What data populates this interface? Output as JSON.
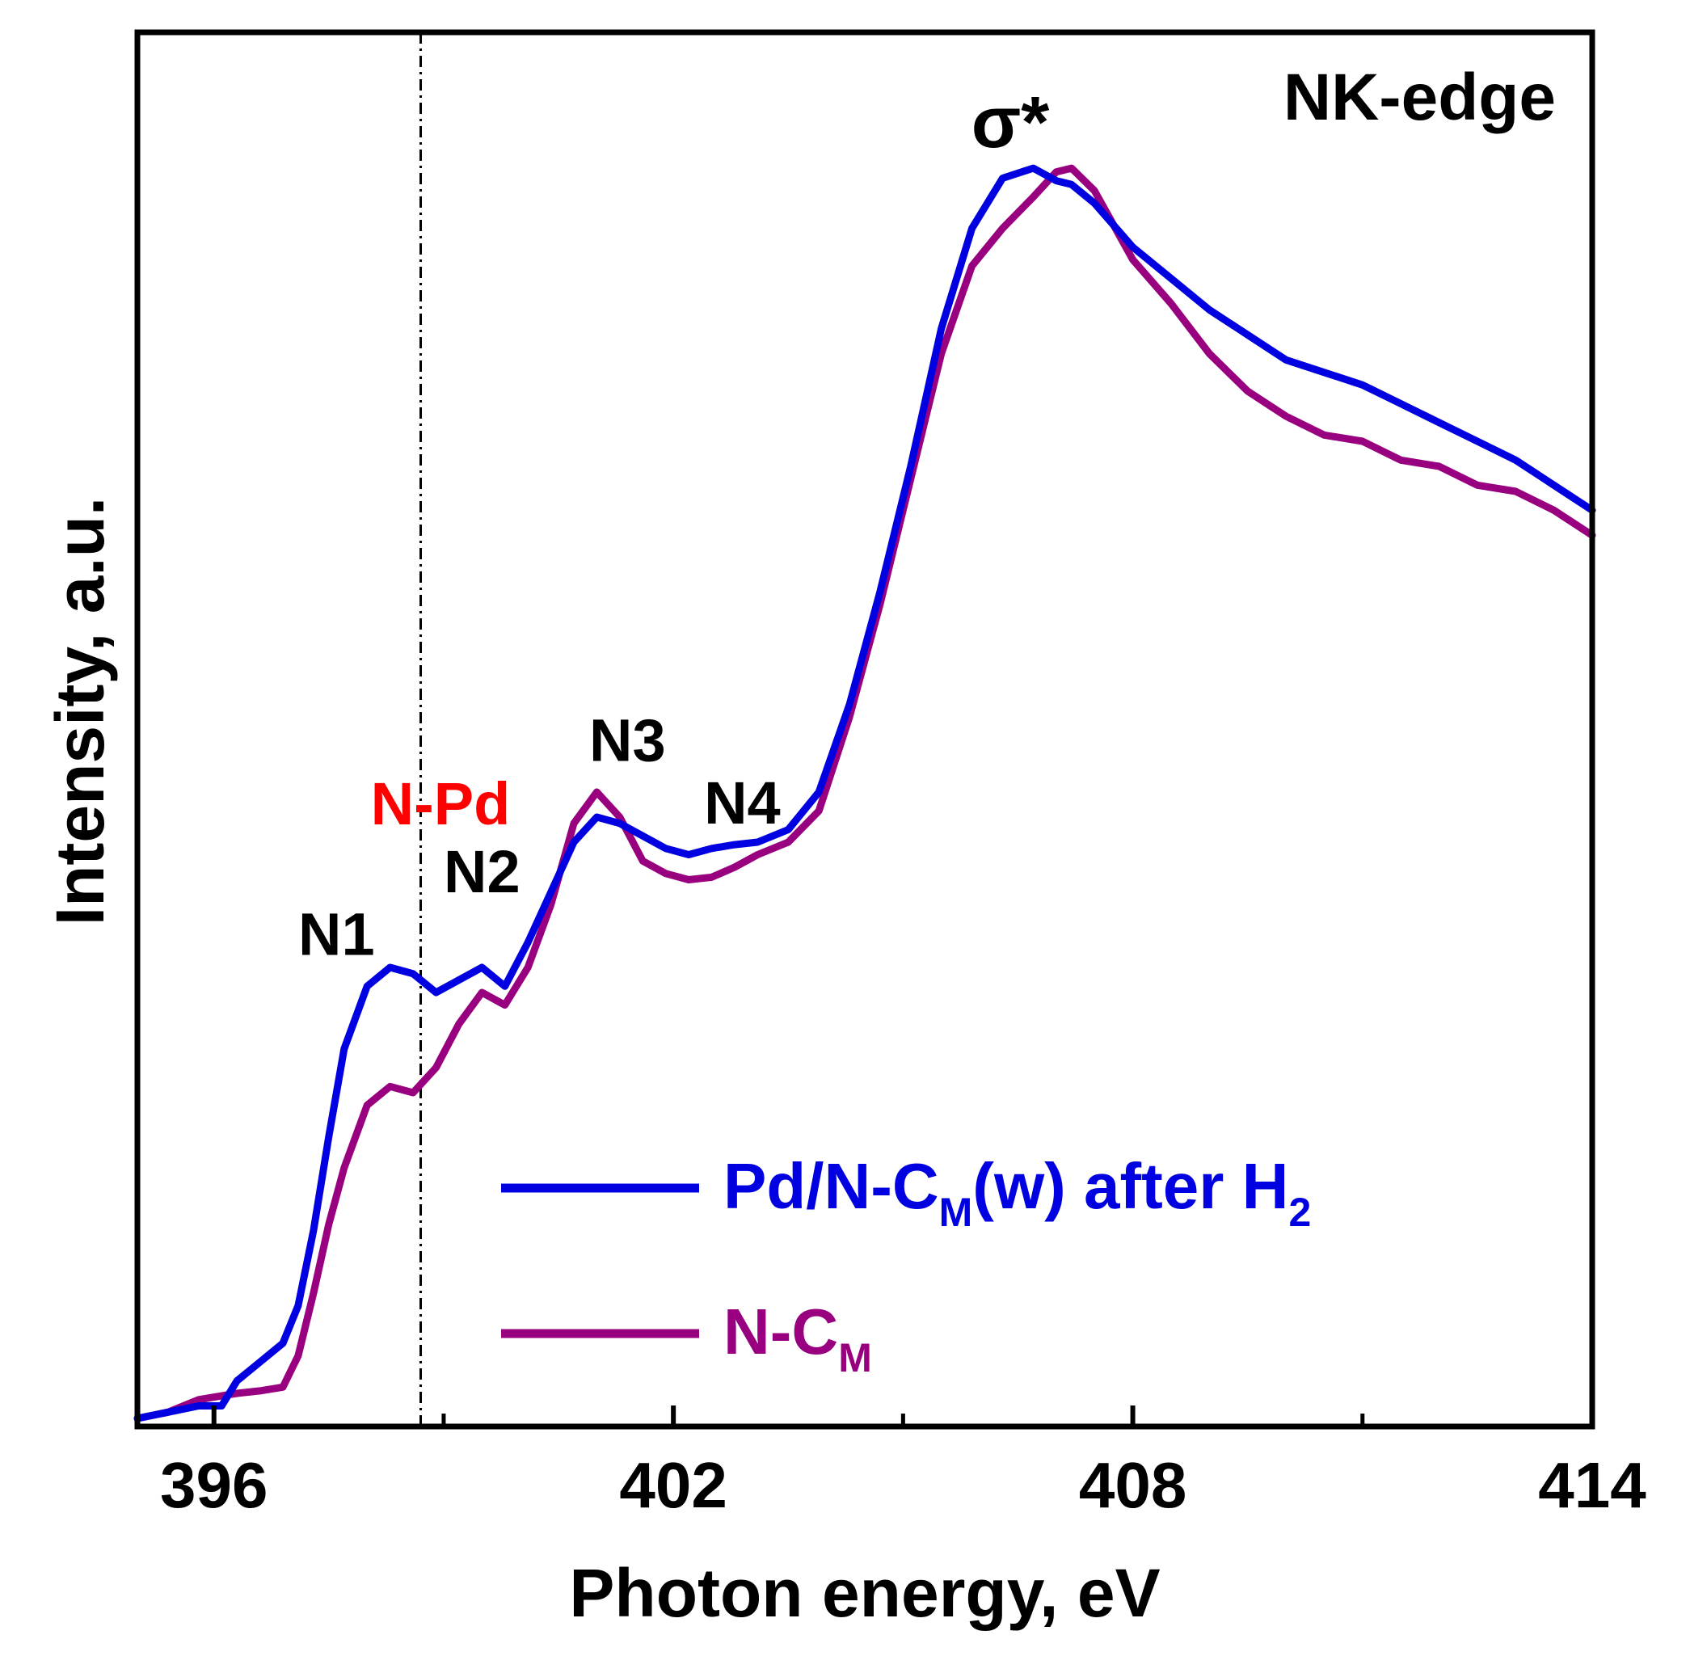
{
  "chart_data": {
    "type": "line",
    "title": "",
    "xlabel": "Photon energy, eV",
    "ylabel": "Intensity, a.u.",
    "xlim": [
      395,
      414
    ],
    "ylim": [
      0,
      1
    ],
    "grid": false,
    "xticks": [
      396,
      402,
      408,
      414
    ],
    "xticks_minor": [
      399,
      405,
      411
    ],
    "edge_label": "NK-edge",
    "reference_line": {
      "x": 398.7,
      "label": "N-Pd",
      "color": "#ff0000",
      "style": "dash-dot"
    },
    "annotations": [
      {
        "id": "n1",
        "text": "N1",
        "x": 397.6,
        "y": 0.37
      },
      {
        "id": "n2",
        "text": "N2",
        "x": 399.5,
        "y": 0.42
      },
      {
        "id": "n3",
        "text": "N3",
        "x": 401.4,
        "y": 0.525
      },
      {
        "id": "n4",
        "text": "N4",
        "x": 402.9,
        "y": 0.475
      },
      {
        "id": "sigma",
        "text": "σ*",
        "x": 406.4,
        "y": 1.015
      }
    ],
    "legend": {
      "position": "lower-right",
      "entries": [
        {
          "series": 0,
          "text": "Pd/N-C",
          "sub": "M",
          "suffix": "(w) after H",
          "sub2": "2"
        },
        {
          "series": 1,
          "text": "N-C",
          "sub": "M",
          "suffix": "",
          "sub2": ""
        }
      ]
    },
    "series": [
      {
        "name": "Pd/N-CM(w) after H2",
        "color": "#0000e0",
        "x": [
          395.0,
          395.4,
          395.8,
          396.1,
          396.3,
          396.6,
          396.9,
          397.1,
          397.3,
          397.5,
          397.7,
          398.0,
          398.3,
          398.6,
          398.9,
          399.2,
          399.5,
          399.8,
          400.1,
          400.4,
          400.7,
          401.0,
          401.3,
          401.6,
          401.9,
          402.2,
          402.5,
          402.8,
          403.1,
          403.5,
          403.9,
          404.3,
          404.7,
          405.1,
          405.5,
          405.9,
          406.3,
          406.7,
          407.0,
          407.2,
          407.5,
          408.0,
          408.5,
          409.0,
          409.5,
          410.0,
          410.5,
          411.0,
          411.5,
          412.0,
          412.5,
          413.0,
          413.5,
          414.0
        ],
        "y": [
          0.0,
          0.005,
          0.01,
          0.01,
          0.03,
          0.045,
          0.06,
          0.09,
          0.15,
          0.225,
          0.295,
          0.345,
          0.36,
          0.355,
          0.34,
          0.35,
          0.36,
          0.345,
          0.38,
          0.42,
          0.46,
          0.48,
          0.475,
          0.465,
          0.455,
          0.45,
          0.455,
          0.458,
          0.46,
          0.47,
          0.5,
          0.57,
          0.66,
          0.76,
          0.87,
          0.95,
          0.99,
          0.998,
          0.988,
          0.985,
          0.97,
          0.935,
          0.91,
          0.885,
          0.865,
          0.845,
          0.835,
          0.825,
          0.81,
          0.795,
          0.78,
          0.765,
          0.745,
          0.725
        ]
      },
      {
        "name": "N-CM",
        "color": "#990080",
        "x": [
          395.0,
          395.4,
          395.8,
          396.1,
          396.3,
          396.6,
          396.9,
          397.1,
          397.3,
          397.5,
          397.7,
          398.0,
          398.3,
          398.6,
          398.9,
          399.2,
          399.5,
          399.8,
          400.1,
          400.4,
          400.7,
          401.0,
          401.3,
          401.6,
          401.9,
          402.2,
          402.5,
          402.8,
          403.1,
          403.5,
          403.9,
          404.3,
          404.7,
          405.1,
          405.5,
          405.9,
          406.3,
          406.7,
          407.0,
          407.2,
          407.5,
          408.0,
          408.5,
          409.0,
          409.5,
          410.0,
          410.5,
          411.0,
          411.5,
          412.0,
          412.5,
          413.0,
          413.5,
          414.0
        ],
        "y": [
          0.0,
          0.005,
          0.015,
          0.018,
          0.02,
          0.022,
          0.025,
          0.05,
          0.1,
          0.155,
          0.2,
          0.25,
          0.265,
          0.26,
          0.28,
          0.315,
          0.34,
          0.33,
          0.36,
          0.41,
          0.475,
          0.5,
          0.48,
          0.445,
          0.435,
          0.43,
          0.432,
          0.44,
          0.45,
          0.46,
          0.485,
          0.56,
          0.65,
          0.75,
          0.85,
          0.92,
          0.95,
          0.975,
          0.995,
          0.998,
          0.98,
          0.925,
          0.89,
          0.85,
          0.82,
          0.8,
          0.785,
          0.78,
          0.765,
          0.76,
          0.745,
          0.74,
          0.725,
          0.705
        ]
      }
    ]
  }
}
